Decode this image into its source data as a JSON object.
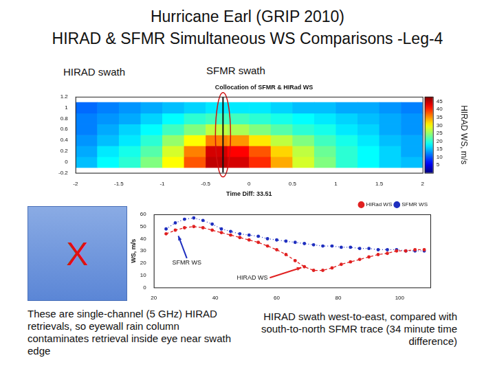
{
  "title": [
    "Hurricane Earl (GRIP 2010)",
    "HIRAD & SFMR Simultaneous WS Comparisons -Leg-4"
  ],
  "annotations": {
    "hirad_swath": "HIRAD swath",
    "sfmr_swath": "SFMR swath",
    "box": "X",
    "note_left": "These are single-channel (5 GHz) HIRAD retrievals, so eyewall rain column contaminates retrieval inside eye near swath edge",
    "note_right": "HIRAD swath west-to-east, compared with south-to-north SFMR trace (34 minute time difference)"
  },
  "chart_data": [
    {
      "type": "heatmap",
      "title": "Collocation of SFMR & HIRad WS",
      "x_label": "Time Diff: 33.51",
      "xlim": [
        -2,
        2
      ],
      "xticks": [
        -2,
        -1.5,
        -1,
        -0.5,
        0,
        0.5,
        1,
        1.5,
        2
      ],
      "ylim": [
        -0.2,
        1.2
      ],
      "yticks": [
        -0.2,
        0,
        0.2,
        0.4,
        0.6,
        0.8,
        1,
        1.2
      ],
      "grid": false,
      "cells": {
        "x": [
          -1.875,
          -1.625,
          -1.375,
          -1.125,
          -0.875,
          -0.625,
          -0.375,
          -0.125,
          0.125,
          0.375,
          0.625,
          0.875,
          1.125,
          1.375,
          1.625,
          1.875
        ],
        "y": [
          0,
          0.2,
          0.4,
          0.6,
          0.8,
          1
        ],
        "values": [
          [
            15,
            18,
            20,
            24,
            30,
            38,
            45,
            44,
            40,
            34,
            28,
            24,
            20,
            18,
            16,
            15
          ],
          [
            14,
            17,
            19,
            22,
            28,
            36,
            44,
            42,
            38,
            32,
            27,
            23,
            20,
            18,
            16,
            14
          ],
          [
            13,
            15,
            17,
            20,
            25,
            30,
            36,
            35,
            31,
            27,
            24,
            21,
            19,
            17,
            15,
            14
          ],
          [
            12,
            14,
            16,
            18,
            21,
            24,
            27,
            26,
            24,
            22,
            20,
            19,
            17,
            16,
            14,
            13
          ],
          [
            12,
            13,
            14,
            16,
            18,
            20,
            21,
            21,
            20,
            19,
            18,
            17,
            16,
            15,
            14,
            13
          ],
          [
            11,
            12,
            13,
            14,
            15,
            16,
            17,
            17,
            17,
            16,
            15,
            15,
            14,
            14,
            13,
            12
          ]
        ]
      },
      "colorbar": {
        "range": [
          0,
          48
        ],
        "ticks": [
          5,
          10,
          15,
          20,
          25,
          30,
          35,
          40,
          45
        ],
        "label": "HIRAD WS, m/s"
      },
      "sfmr_track_x": -0.3
    },
    {
      "type": "line",
      "y_label": "WS, m/s",
      "x": [
        24,
        27,
        30,
        33,
        36,
        39,
        42,
        45,
        48,
        51,
        54,
        57,
        60,
        63,
        66,
        69,
        72,
        75,
        78,
        81,
        84,
        87,
        90,
        93,
        96,
        99,
        102,
        105,
        108
      ],
      "series": [
        {
          "name": "HIRad WS",
          "color": "#e02020",
          "line_style": "dashed",
          "marker": "circle",
          "values": [
            44,
            47,
            49,
            50,
            49,
            47,
            45,
            43,
            41,
            39,
            37,
            34,
            31,
            27,
            22,
            17,
            14,
            14,
            16,
            19,
            21,
            23,
            25,
            27,
            28,
            30,
            30,
            31,
            31
          ]
        },
        {
          "name": "SFMR WS",
          "color": "#1f2fbf",
          "line_style": "dotted",
          "marker": "circle",
          "values": [
            48,
            53,
            56,
            57,
            55,
            52,
            48,
            46,
            44,
            43,
            42,
            40,
            39,
            38,
            37,
            36,
            35,
            34,
            34,
            33,
            33,
            32,
            32,
            31,
            31,
            31,
            30,
            30,
            30
          ]
        }
      ],
      "xlim": [
        20,
        110
      ],
      "xticks": [
        20,
        40,
        60,
        80,
        100
      ],
      "ylim": [
        0,
        60
      ],
      "yticks": [
        0,
        10,
        20,
        30,
        40,
        50,
        60
      ],
      "grid": false,
      "legend": "top right",
      "annotations": [
        "SFMR WS",
        "HIRAD WS"
      ]
    }
  ]
}
